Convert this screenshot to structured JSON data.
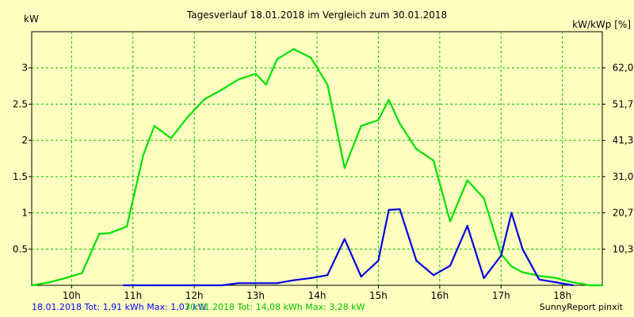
{
  "chart_data": {
    "type": "line",
    "title": "Tagesverlauf 18.01.2018 im Vergleich zum 30.01.2018",
    "ylabel_left": "kW",
    "ylabel_right": "kW/kWp [%]",
    "xlim": [
      9.35,
      18.65
    ],
    "ylim": [
      0,
      3.5
    ],
    "x_ticks": [
      10,
      11,
      12,
      13,
      14,
      15,
      16,
      17,
      18
    ],
    "x_tick_labels": [
      "10h",
      "11h",
      "12h",
      "13h",
      "14h",
      "15h",
      "16h",
      "17h",
      "18h"
    ],
    "y_ticks": [
      0.5,
      1,
      1.5,
      2,
      2.5,
      3
    ],
    "y_tick_labels": [
      "0.5",
      "1",
      "1.5",
      "2",
      "2.5",
      "3"
    ],
    "y2_ticks": [
      0.5,
      1,
      1.5,
      2,
      2.5,
      3
    ],
    "y2_tick_labels": [
      "10,3",
      "20,7",
      "31,0",
      "41,3",
      "51,7",
      "62,0"
    ],
    "grid": true,
    "series": [
      {
        "color": "#00e000",
        "x": [
          9.35,
          9.63,
          9.9,
          10.17,
          10.45,
          10.62,
          10.9,
          11.17,
          11.35,
          11.62,
          11.9,
          12.17,
          12.45,
          12.72,
          13.0,
          13.17,
          13.35,
          13.62,
          13.9,
          14.17,
          14.45,
          14.72,
          15.0,
          15.17,
          15.35,
          15.62,
          15.9,
          16.17,
          16.45,
          16.72,
          17.0,
          17.17,
          17.35,
          17.62,
          17.9,
          18.17,
          18.45,
          18.65
        ],
        "values": [
          0.0,
          0.04,
          0.1,
          0.17,
          0.71,
          0.72,
          0.81,
          1.8,
          2.2,
          2.03,
          2.33,
          2.57,
          2.7,
          2.84,
          2.92,
          2.77,
          3.12,
          3.26,
          3.14,
          2.77,
          1.62,
          2.2,
          2.28,
          2.56,
          2.23,
          1.88,
          1.72,
          0.88,
          1.45,
          1.2,
          0.43,
          0.26,
          0.18,
          0.13,
          0.1,
          0.04,
          0.0,
          0.0
        ]
      },
      {
        "color": "#0000e0",
        "x": [
          10.85,
          11.35,
          11.9,
          12.45,
          12.72,
          13.0,
          13.35,
          13.62,
          13.9,
          14.17,
          14.45,
          14.72,
          15.0,
          15.17,
          15.35,
          15.62,
          15.9,
          16.17,
          16.45,
          16.72,
          17.0,
          17.17,
          17.35,
          17.62,
          17.9,
          18.17
        ],
        "values": [
          0.0,
          0.0,
          0.0,
          0.0,
          0.03,
          0.03,
          0.03,
          0.07,
          0.1,
          0.14,
          0.64,
          0.12,
          0.34,
          1.04,
          1.05,
          0.34,
          0.14,
          0.27,
          0.82,
          0.1,
          0.41,
          1.0,
          0.5,
          0.08,
          0.04,
          0.0
        ]
      }
    ]
  },
  "footer": {
    "series1_summary": "18.01.2018 Tot: 1,91 kWh Max: 1,07 kW",
    "series2_summary": "30.01.2018 Tot: 14,08 kWh Max: 3,28 kW",
    "credit": "SunnyReport pinxit"
  },
  "colors": {
    "background": "#ffffc0",
    "grid": "#00c000",
    "axis": "#000000"
  }
}
